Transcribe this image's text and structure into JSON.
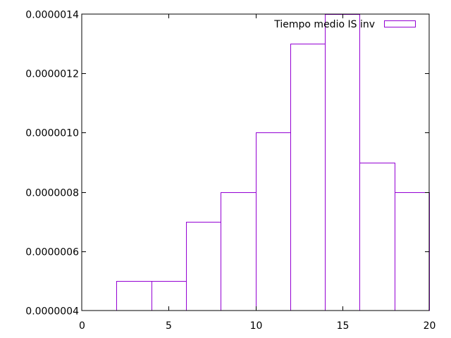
{
  "chart_data": {
    "type": "bar",
    "title": "",
    "xlabel": "",
    "ylabel": "",
    "xlim": [
      0,
      20
    ],
    "ylim": [
      4e-07,
      1.4e-06
    ],
    "x_ticks": [
      0,
      5,
      10,
      15,
      20
    ],
    "x_tick_labels": [
      "0",
      "5",
      "10",
      "15",
      "20"
    ],
    "y_ticks": [
      4e-07,
      6e-07,
      8e-07,
      1e-06,
      1.2e-06,
      1.4e-06
    ],
    "y_tick_labels": [
      "0.0000004",
      "0.0000006",
      "0.0000008",
      "0.0000010",
      "0.0000012",
      "0.0000014"
    ],
    "grid": false,
    "legend_position": "top-right",
    "series": [
      {
        "name": "Tiempo medio IS inv",
        "color": "#9400d3",
        "bins": [
          {
            "x0": 2,
            "x1": 4,
            "value": 5e-07
          },
          {
            "x0": 4,
            "x1": 6,
            "value": 5e-07
          },
          {
            "x0": 6,
            "x1": 8,
            "value": 7e-07
          },
          {
            "x0": 8,
            "x1": 10,
            "value": 8e-07
          },
          {
            "x0": 10,
            "x1": 12,
            "value": 1e-06
          },
          {
            "x0": 12,
            "x1": 14,
            "value": 1.3e-06
          },
          {
            "x0": 14,
            "x1": 16,
            "value": 1.4e-06
          },
          {
            "x0": 16,
            "x1": 18,
            "value": 9e-07
          },
          {
            "x0": 18,
            "x1": 20,
            "value": 8e-07
          }
        ]
      }
    ]
  }
}
